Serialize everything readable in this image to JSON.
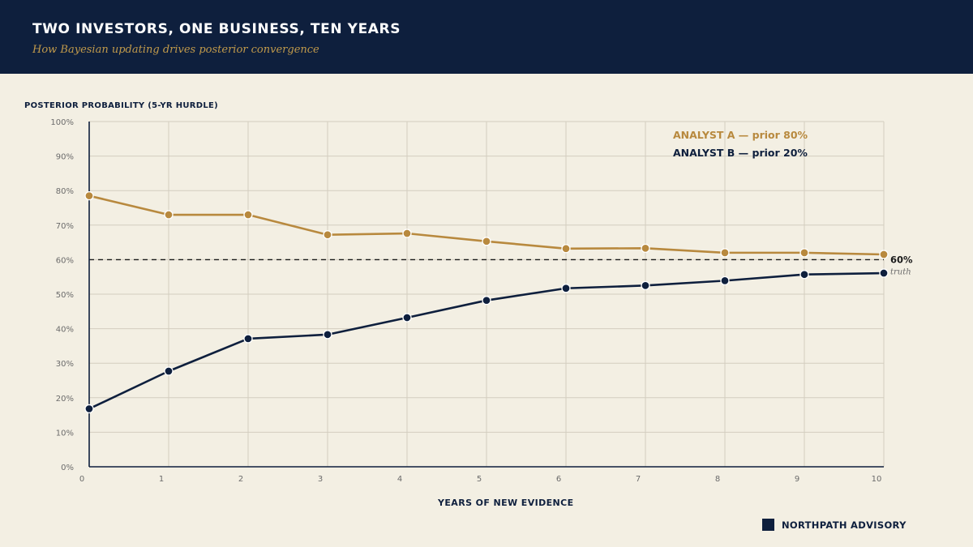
{
  "header": {
    "title": "TWO INVESTORS, ONE BUSINESS, TEN YEARS",
    "subtitle": "How Bayesian updating drives posterior convergence"
  },
  "brand": {
    "name": "NORTHPATH ADVISORY",
    "logo_icon": "square-mark-icon"
  },
  "colors": {
    "header_bg": "#0e1f3d",
    "background": "#f3efe3",
    "analyst_a": "#b8893e",
    "analyst_b": "#0e1f3d",
    "grid": "#d3cdbf"
  },
  "chart_data": {
    "type": "line",
    "ylabel": "POSTERIOR PROBABILITY (5-YR HURDLE)",
    "xlabel": "YEARS OF NEW EVIDENCE",
    "x": [
      0,
      1,
      2,
      3,
      4,
      5,
      6,
      7,
      8,
      9,
      10
    ],
    "xlim": [
      0,
      10
    ],
    "ylim": [
      0,
      100
    ],
    "y_ticks": [
      0,
      10,
      20,
      30,
      40,
      50,
      60,
      70,
      80,
      90,
      100
    ],
    "y_tick_labels": [
      "0%",
      "10%",
      "20%",
      "30%",
      "40%",
      "50%",
      "60%",
      "70%",
      "80%",
      "90%",
      "100%"
    ],
    "x_tick_labels": [
      "0",
      "1",
      "2",
      "3",
      "4",
      "5",
      "6",
      "7",
      "8",
      "9",
      "10"
    ],
    "grid": true,
    "legend_position": "top-right",
    "series": [
      {
        "name": "ANALYST A — prior 80%",
        "color": "#b8893e",
        "values": [
          78.5,
          73,
          73,
          67.2,
          67.6,
          65.3,
          63.2,
          63.3,
          62,
          62,
          61.5
        ]
      },
      {
        "name": "ANALYST B — prior 20%",
        "color": "#0e1f3d",
        "values": [
          16.8,
          27.7,
          37.1,
          38.3,
          43.2,
          48.2,
          51.7,
          52.5,
          53.9,
          55.7,
          56.1
        ]
      }
    ],
    "reference_line": {
      "value": 60,
      "label": "60%",
      "sublabel": "truth"
    }
  }
}
